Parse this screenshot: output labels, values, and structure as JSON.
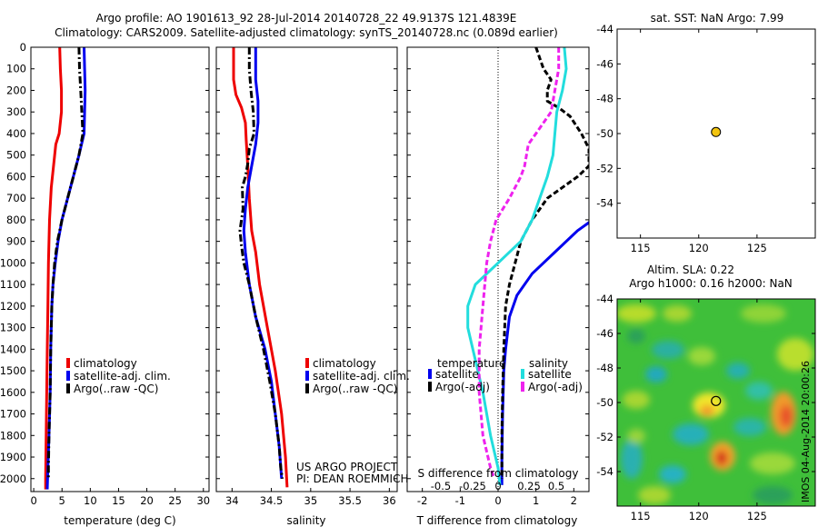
{
  "header": {
    "line1": "Argo profile: AO 1901613_92 28-Jul-2014 20140728_22 49.9137S 121.4839E",
    "line2": "Climatology: CARS2009. Satellite-adjusted climatology: synTS_20140728.nc (0.089d earlier)"
  },
  "chart_data": [
    {
      "type": "line",
      "xlabel": "temperature (deg C)",
      "xlim": [
        -0.5,
        31
      ],
      "xticks": [
        0,
        5,
        10,
        15,
        20,
        25,
        30
      ],
      "ylim": [
        0,
        2060
      ],
      "y_reversed": true,
      "yticks": [
        0,
        100,
        200,
        300,
        400,
        500,
        600,
        700,
        800,
        900,
        1000,
        1100,
        1200,
        1300,
        1400,
        1500,
        1600,
        1700,
        1800,
        1900,
        2000
      ],
      "legend": [
        "climatology",
        "satellite-adj. clim.",
        "Argo(..raw -QC)"
      ],
      "series": [
        {
          "name": "climatology",
          "color": "#ee0000",
          "style": "solid",
          "points": [
            [
              4.6,
              0
            ],
            [
              4.7,
              100
            ],
            [
              4.9,
              200
            ],
            [
              4.9,
              300
            ],
            [
              4.5,
              400
            ],
            [
              3.9,
              450
            ],
            [
              3.5,
              550
            ],
            [
              3.1,
              650
            ],
            [
              2.8,
              800
            ],
            [
              2.6,
              1000
            ],
            [
              2.5,
              1200
            ],
            [
              2.4,
              1400
            ],
            [
              2.3,
              1600
            ],
            [
              2.2,
              1800
            ],
            [
              2.1,
              2000
            ],
            [
              2.1,
              2050
            ]
          ]
        },
        {
          "name": "satellite-adj. clim.",
          "color": "#0000ee",
          "style": "solid",
          "points": [
            [
              8.9,
              0
            ],
            [
              9.0,
              100
            ],
            [
              9.1,
              200
            ],
            [
              9.0,
              300
            ],
            [
              8.9,
              400
            ],
            [
              8.0,
              500
            ],
            [
              7.0,
              600
            ],
            [
              6.0,
              700
            ],
            [
              5.0,
              800
            ],
            [
              4.3,
              900
            ],
            [
              3.8,
              1000
            ],
            [
              3.4,
              1100
            ],
            [
              3.2,
              1200
            ],
            [
              3.0,
              1400
            ],
            [
              2.9,
              1600
            ],
            [
              2.7,
              1800
            ],
            [
              2.5,
              1950
            ],
            [
              2.4,
              2050
            ]
          ]
        },
        {
          "name": "Argo(..raw -QC)",
          "color": "#000000",
          "style": "dashdot",
          "points": [
            [
              8.0,
              0
            ],
            [
              8.1,
              100
            ],
            [
              8.3,
              200
            ],
            [
              8.5,
              300
            ],
            [
              8.7,
              400
            ],
            [
              8.0,
              500
            ],
            [
              7.0,
              600
            ],
            [
              6.0,
              700
            ],
            [
              5.0,
              800
            ],
            [
              4.2,
              900
            ],
            [
              3.7,
              1000
            ],
            [
              3.4,
              1100
            ],
            [
              3.2,
              1200
            ],
            [
              3.0,
              1400
            ],
            [
              2.9,
              1600
            ],
            [
              2.7,
              1800
            ],
            [
              2.6,
              1950
            ],
            [
              2.6,
              2000
            ]
          ]
        }
      ]
    },
    {
      "type": "line",
      "xlabel": "salinity",
      "xlim": [
        33.8,
        36.1
      ],
      "xticks": [
        34,
        34.5,
        35,
        35.5,
        36
      ],
      "ylim": [
        0,
        2060
      ],
      "y_reversed": true,
      "legend": [
        "climatology",
        "satellite-adj. clim.",
        "Argo(..raw -QC)"
      ],
      "annotations": [
        "US ARGO PROJECT",
        "PI: DEAN ROEMMICH"
      ],
      "series": [
        {
          "name": "climatology",
          "color": "#ee0000",
          "style": "solid",
          "points": [
            [
              34.02,
              0
            ],
            [
              34.02,
              150
            ],
            [
              34.05,
              220
            ],
            [
              34.12,
              280
            ],
            [
              34.17,
              350
            ],
            [
              34.18,
              430
            ],
            [
              34.2,
              550
            ],
            [
              34.22,
              700
            ],
            [
              34.25,
              850
            ],
            [
              34.3,
              950
            ],
            [
              34.35,
              1100
            ],
            [
              34.45,
              1300
            ],
            [
              34.55,
              1500
            ],
            [
              34.63,
              1700
            ],
            [
              34.68,
              1900
            ],
            [
              34.7,
              2040
            ]
          ]
        },
        {
          "name": "satellite-adj. clim.",
          "color": "#0000ee",
          "style": "solid",
          "points": [
            [
              34.3,
              0
            ],
            [
              34.3,
              150
            ],
            [
              34.33,
              250
            ],
            [
              34.33,
              350
            ],
            [
              34.3,
              450
            ],
            [
              34.25,
              550
            ],
            [
              34.2,
              650
            ],
            [
              34.17,
              750
            ],
            [
              34.15,
              850
            ],
            [
              34.17,
              950
            ],
            [
              34.22,
              1100
            ],
            [
              34.3,
              1250
            ],
            [
              34.42,
              1400
            ],
            [
              34.5,
              1550
            ],
            [
              34.55,
              1700
            ],
            [
              34.6,
              1850
            ],
            [
              34.63,
              2000
            ]
          ]
        },
        {
          "name": "Argo(..raw -QC)",
          "color": "#000000",
          "style": "dashdot",
          "points": [
            [
              34.22,
              0
            ],
            [
              34.22,
              100
            ],
            [
              34.24,
              200
            ],
            [
              34.27,
              300
            ],
            [
              34.28,
              400
            ],
            [
              34.22,
              470
            ],
            [
              34.2,
              540
            ],
            [
              34.17,
              600
            ],
            [
              34.13,
              650
            ],
            [
              34.14,
              750
            ],
            [
              34.1,
              850
            ],
            [
              34.12,
              920
            ],
            [
              34.15,
              1000
            ],
            [
              34.22,
              1100
            ],
            [
              34.3,
              1250
            ],
            [
              34.4,
              1400
            ],
            [
              34.48,
              1550
            ],
            [
              34.55,
              1700
            ],
            [
              34.6,
              1850
            ],
            [
              34.62,
              1950
            ],
            [
              34.64,
              2000
            ]
          ]
        }
      ]
    },
    {
      "type": "line",
      "xlabel": "T difference from climatology",
      "xlabel_top": "S difference from climatology",
      "xlim": [
        -2.4,
        2.4
      ],
      "xticks": [
        -2,
        -1,
        0,
        1,
        2
      ],
      "top_ticks": [
        "-0.5",
        "-0.25",
        "0",
        "0.25",
        "0.5"
      ],
      "ylim": [
        0,
        2060
      ],
      "y_reversed": true,
      "legend_titles": [
        "temperature",
        "salinity"
      ],
      "legend": [
        "satellite",
        "Argo(-adj)",
        "satellite",
        "Argo(-adj)"
      ],
      "series": [
        {
          "name": "temperature satellite",
          "color": "#0000ee",
          "style": "solid",
          "points": [
            [
              4.3,
              0
            ],
            [
              4.3,
              150
            ],
            [
              4.2,
              250
            ],
            [
              4.1,
              300
            ],
            [
              4.4,
              400
            ],
            [
              4.4,
              500
            ],
            [
              4.0,
              600
            ],
            [
              3.5,
              650
            ],
            [
              3.0,
              700
            ],
            [
              2.5,
              800
            ],
            [
              2.1,
              850
            ],
            [
              1.5,
              950
            ],
            [
              0.9,
              1050
            ],
            [
              0.5,
              1150
            ],
            [
              0.3,
              1250
            ],
            [
              0.2,
              1400
            ],
            [
              0.15,
              1500
            ],
            [
              0.12,
              1700
            ],
            [
              0.1,
              1900
            ],
            [
              0.1,
              2030
            ]
          ]
        },
        {
          "name": "temperature Argo(-adj)",
          "color": "#000000",
          "style": "dashed",
          "points": [
            [
              1.0,
              0
            ],
            [
              1.1,
              50
            ],
            [
              1.2,
              100
            ],
            [
              1.4,
              150
            ],
            [
              1.3,
              200
            ],
            [
              1.3,
              250
            ],
            [
              1.6,
              280
            ],
            [
              1.9,
              320
            ],
            [
              2.2,
              400
            ],
            [
              2.4,
              470
            ],
            [
              2.4,
              550
            ],
            [
              2.1,
              600
            ],
            [
              1.7,
              650
            ],
            [
              1.3,
              700
            ],
            [
              0.9,
              800
            ],
            [
              0.6,
              900
            ],
            [
              0.45,
              1000
            ],
            [
              0.3,
              1100
            ],
            [
              0.2,
              1200
            ],
            [
              0.15,
              1400
            ],
            [
              0.12,
              1600
            ],
            [
              0.1,
              1800
            ],
            [
              0.1,
              2000
            ]
          ]
        },
        {
          "name": "salinity satellite",
          "color": "#22dddd",
          "style": "solid",
          "points": [
            [
              1.75,
              0
            ],
            [
              1.8,
              100
            ],
            [
              1.7,
              200
            ],
            [
              1.55,
              300
            ],
            [
              1.5,
              400
            ],
            [
              1.45,
              500
            ],
            [
              1.3,
              600
            ],
            [
              1.1,
              700
            ],
            [
              0.9,
              800
            ],
            [
              0.6,
              900
            ],
            [
              0.0,
              1000
            ],
            [
              -0.6,
              1100
            ],
            [
              -0.8,
              1200
            ],
            [
              -0.8,
              1300
            ],
            [
              -0.6,
              1450
            ],
            [
              -0.4,
              1600
            ],
            [
              -0.2,
              1800
            ],
            [
              0.0,
              1950
            ],
            [
              0.05,
              2030
            ]
          ]
        },
        {
          "name": "salinity Argo(-adj)",
          "color": "#ee22ee",
          "style": "dashed",
          "points": [
            [
              1.6,
              0
            ],
            [
              1.6,
              100
            ],
            [
              1.5,
              200
            ],
            [
              1.4,
              300
            ],
            [
              1.0,
              400
            ],
            [
              0.8,
              450
            ],
            [
              0.7,
              550
            ],
            [
              0.6,
              600
            ],
            [
              0.3,
              700
            ],
            [
              -0.05,
              800
            ],
            [
              -0.2,
              900
            ],
            [
              -0.3,
              1000
            ],
            [
              -0.4,
              1200
            ],
            [
              -0.5,
              1400
            ],
            [
              -0.5,
              1600
            ],
            [
              -0.4,
              1800
            ],
            [
              -0.2,
              1950
            ],
            [
              -0.1,
              2000
            ]
          ]
        }
      ]
    },
    {
      "type": "scatter",
      "title": "sat. SST: NaN Argo: 7.99",
      "xlim": [
        113,
        130
      ],
      "ylim": [
        -56,
        -44
      ],
      "xticks": [
        115,
        120,
        125
      ],
      "yticks": [
        -44,
        -46,
        -48,
        -50,
        -52,
        -54
      ],
      "points": [
        {
          "x": 121.48,
          "y": -49.91,
          "color": "#f2c40f"
        }
      ]
    },
    {
      "type": "heatmap",
      "title": "Altim. SLA: 0.22",
      "subtitle": "Argo h1000: 0.16 h2000: NaN",
      "xlim": [
        113,
        130
      ],
      "ylim": [
        -56,
        -44
      ],
      "xticks": [
        115,
        120,
        125
      ],
      "yticks": [
        -44,
        -46,
        -48,
        -50,
        -52,
        -54
      ],
      "side_label": "IMOS 04-Aug-2014 20:00:26",
      "marker": {
        "x": 121.48,
        "y": -49.91
      }
    }
  ]
}
